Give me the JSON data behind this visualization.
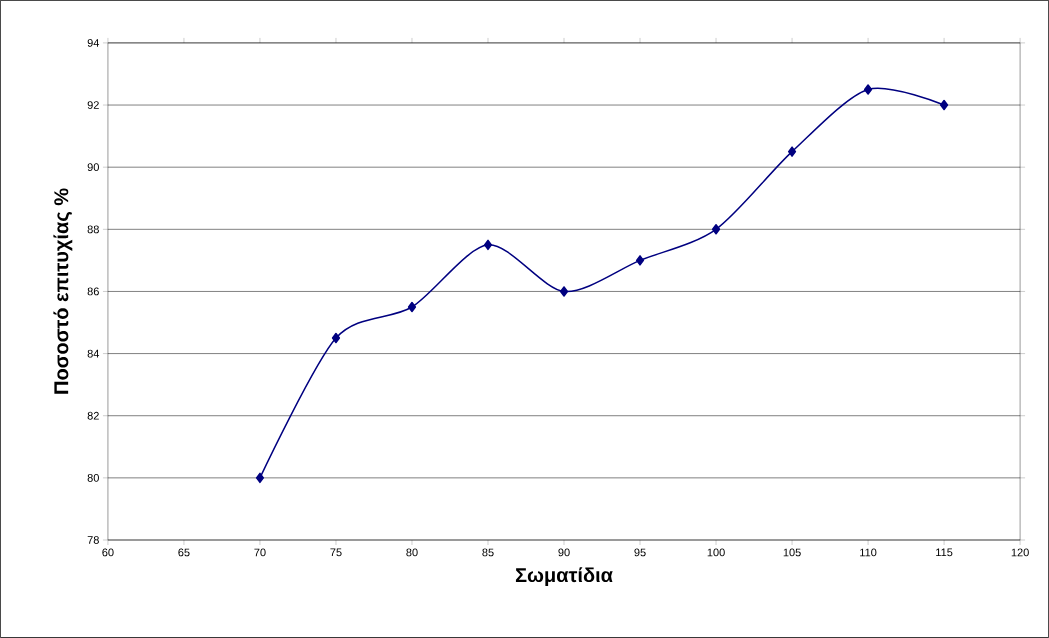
{
  "chart_data": {
    "type": "line",
    "xlabel": "Σωματίδια",
    "ylabel": "Ποσοστό επιτυχίας %",
    "x": [
      70,
      75,
      80,
      85,
      90,
      95,
      100,
      105,
      110,
      115
    ],
    "values": [
      80,
      84.5,
      85.5,
      87.5,
      86,
      87,
      88,
      90.5,
      92.5,
      92
    ],
    "color": "#000080",
    "marker": "diamond",
    "line_style": "solid",
    "xlim": [
      60,
      120
    ],
    "xticks": [
      60,
      65,
      70,
      75,
      80,
      85,
      90,
      95,
      100,
      105,
      110,
      115,
      120
    ],
    "ylim": [
      78,
      94
    ],
    "yticks": [
      78,
      80,
      82,
      84,
      86,
      88,
      90,
      92,
      94
    ],
    "grid": "y"
  }
}
